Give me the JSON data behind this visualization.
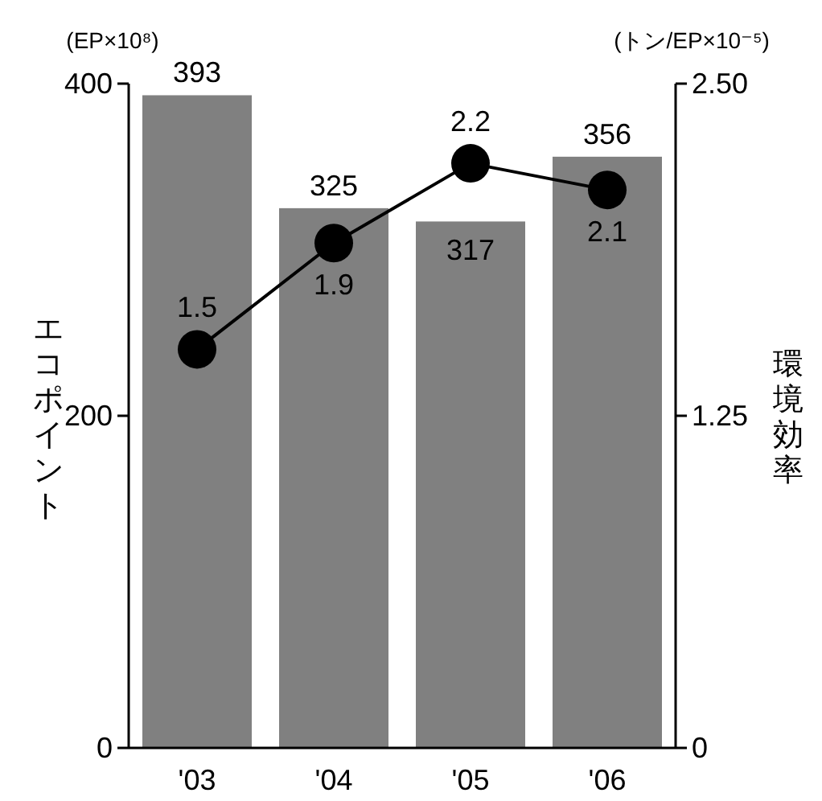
{
  "chart_data": {
    "type": "bar",
    "categories": [
      "'03",
      "'04",
      "'05",
      "'06"
    ],
    "series": [
      {
        "color": "#808080",
        "values": [
          393,
          325,
          317,
          356
        ]
      },
      {
        "type": "line",
        "axis": "y2",
        "color": "#000000",
        "marker": "circle",
        "values": [
          1.5,
          1.9,
          2.2,
          2.1
        ]
      }
    ],
    "ylabel": "エコポイント",
    "y2label": "環境効率",
    "annotations": [
      "(EP×10⁸)",
      "(トン/EP×10⁻⁵)"
    ],
    "ylim": [
      0,
      400
    ],
    "yticks": [
      0,
      200,
      400
    ],
    "y2lim": [
      0,
      2.5
    ],
    "y2ticks": [
      0,
      {
        "value": 1.25,
        "label": "1.25"
      },
      {
        "value": 2.5,
        "label": "2.50"
      }
    ],
    "data_labels": true,
    "grid": false
  }
}
